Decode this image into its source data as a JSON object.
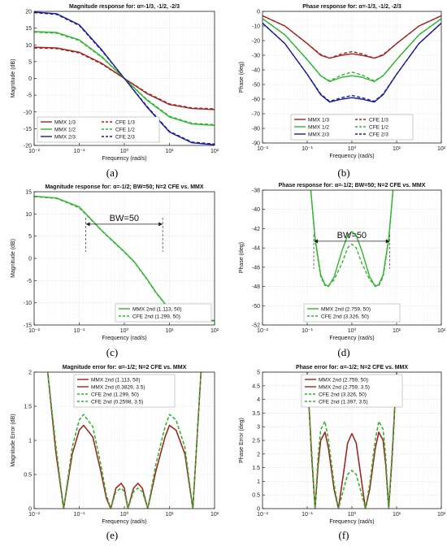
{
  "chart_data": [
    {
      "panel_id": "a",
      "caption": "(a)",
      "type": "line",
      "title": "Magnitude response for: α=-1/3, -1/2, -2/3",
      "xlabel": "Frequency (rad/s)",
      "ylabel": "Magnitude (dB)",
      "xscale": "log",
      "xlim": [
        0.01,
        100
      ],
      "ylim": [
        -20,
        20
      ],
      "xticks": [
        0.01,
        0.1,
        1,
        10,
        100
      ],
      "xtick_labels": [
        "10⁻²",
        "10⁻¹",
        "10⁰",
        "10¹",
        "10²"
      ],
      "yticks": [
        -20,
        -15,
        -10,
        -5,
        0,
        5,
        10,
        15,
        20
      ],
      "ytick_labels": [
        "-20",
        "-15",
        "-10",
        "-5",
        "0",
        "5",
        "10",
        "15",
        "20"
      ],
      "grid": true,
      "legend_position": "bottom-left",
      "legend_columns": 2,
      "x": [
        0.01,
        0.0316,
        0.1,
        0.316,
        1,
        3.16,
        10,
        31.6,
        100
      ],
      "series": [
        {
          "name": "MMX 1/3",
          "color": "#a3231f",
          "dash": "solid",
          "values": [
            9.3,
            9.1,
            7.8,
            4.5,
            0,
            -4.5,
            -7.8,
            -9.0,
            -9.3
          ]
        },
        {
          "name": "CFE 1/3",
          "color": "#a3231f",
          "dash": "dashed",
          "values": [
            9.1,
            8.9,
            7.6,
            4.3,
            0,
            -4.3,
            -7.6,
            -8.8,
            -9.1
          ]
        },
        {
          "name": "MMX 1/2",
          "color": "#2fb62f",
          "dash": "solid",
          "values": [
            14.0,
            13.7,
            11.5,
            6.5,
            0,
            -6.5,
            -11.5,
            -13.6,
            -14.0
          ]
        },
        {
          "name": "CFE 1/2",
          "color": "#2fb62f",
          "dash": "dashed",
          "values": [
            13.8,
            13.5,
            11.3,
            6.3,
            0,
            -6.3,
            -11.3,
            -13.4,
            -13.8
          ]
        },
        {
          "name": "MMX 2/3",
          "color": "#1a1a9e",
          "dash": "solid",
          "values": [
            19.8,
            19.3,
            16.0,
            8.5,
            0,
            -8.5,
            -16.0,
            -19.2,
            -19.8
          ]
        },
        {
          "name": "CFE 2/3",
          "color": "#1a1a9e",
          "dash": "dashed",
          "values": [
            19.6,
            19.1,
            15.8,
            8.3,
            0,
            -8.3,
            -15.8,
            -19.0,
            -19.6
          ]
        }
      ],
      "annotations": []
    },
    {
      "panel_id": "b",
      "caption": "(b)",
      "type": "line",
      "title": "Phase response for: α=-1/3, -1/2, -2/3",
      "xlabel": "Frequency (rad/s)",
      "ylabel": "Phase (deg)",
      "xscale": "log",
      "xlim": [
        0.01,
        100
      ],
      "ylim": [
        -90,
        0
      ],
      "xticks": [
        0.01,
        0.1,
        1,
        10,
        100
      ],
      "xtick_labels": [
        "10⁻²",
        "10⁻¹",
        "10⁰",
        "10¹",
        "10²"
      ],
      "yticks": [
        -90,
        -80,
        -70,
        -60,
        -50,
        -40,
        -30,
        -20,
        -10,
        0
      ],
      "ytick_labels": [
        "-90",
        "-80",
        "-70",
        "-60",
        "-50",
        "-40",
        "-30",
        "-20",
        "-10",
        "0"
      ],
      "grid": true,
      "legend_position": "bottom-center",
      "legend_columns": 2,
      "x": [
        0.01,
        0.0316,
        0.1,
        0.2,
        0.316,
        0.6,
        1,
        1.67,
        3.16,
        5,
        10,
        31.6,
        100
      ],
      "series": [
        {
          "name": "MMX 1/3",
          "color": "#a3231f",
          "dash": "solid",
          "values": [
            -3,
            -10,
            -22,
            -30,
            -32,
            -30,
            -29,
            -30,
            -32,
            -30,
            -22,
            -10,
            -3
          ]
        },
        {
          "name": "CFE 1/3",
          "color": "#a3231f",
          "dash": "dashed",
          "values": [
            -3,
            -10,
            -22,
            -29.5,
            -32,
            -29,
            -27.5,
            -29,
            -32,
            -29.5,
            -22,
            -10,
            -3
          ]
        },
        {
          "name": "MMX 1/2",
          "color": "#2fb62f",
          "dash": "solid",
          "values": [
            -5,
            -16,
            -33,
            -44,
            -48,
            -45,
            -44,
            -45,
            -48,
            -44,
            -33,
            -16,
            -5
          ]
        },
        {
          "name": "CFE 1/2",
          "color": "#2fb62f",
          "dash": "dashed",
          "values": [
            -5,
            -16,
            -33,
            -44,
            -47.5,
            -43.5,
            -41.5,
            -43.5,
            -47.5,
            -44,
            -33,
            -16,
            -5
          ]
        },
        {
          "name": "MMX 2/3",
          "color": "#1a1a9e",
          "dash": "solid",
          "values": [
            -8,
            -22,
            -43,
            -57,
            -62,
            -60,
            -59,
            -60,
            -62,
            -57,
            -43,
            -22,
            -8
          ]
        },
        {
          "name": "CFE 2/3",
          "color": "#1a1a9e",
          "dash": "dashed",
          "values": [
            -8,
            -22,
            -43,
            -56.5,
            -61.5,
            -59,
            -57.5,
            -59,
            -61.5,
            -56.5,
            -43,
            -22,
            -8
          ]
        }
      ],
      "annotations": []
    },
    {
      "panel_id": "c",
      "caption": "(c)",
      "type": "line",
      "title": "Magnitude response for: α=-1/2; BW=50; N=2 CFE vs. MMX",
      "xlabel": "Frequency (rad/s)",
      "ylabel": "Magnitude (dB)",
      "xscale": "log",
      "xlim": [
        0.01,
        100
      ],
      "ylim": [
        -15,
        15
      ],
      "xticks": [
        0.01,
        0.1,
        1,
        10,
        100
      ],
      "xtick_labels": [
        "10⁻²",
        "10⁻¹",
        "10⁰",
        "10¹",
        "10²"
      ],
      "yticks": [
        -15,
        -10,
        -5,
        0,
        5,
        10,
        15
      ],
      "ytick_labels": [
        "-15",
        "-10",
        "-5",
        "0",
        "5",
        "10",
        "15"
      ],
      "grid": true,
      "legend_position": "bottom-right",
      "legend_columns": 1,
      "x": [
        0.01,
        0.0316,
        0.1,
        0.2,
        0.316,
        0.6,
        1,
        1.67,
        3.16,
        5,
        10,
        31.6,
        100
      ],
      "series": [
        {
          "name": "MMX 2nd (1.113, 50)",
          "color": "#2fb62f",
          "dash": "solid",
          "values": [
            14.0,
            13.6,
            11.6,
            8.4,
            6.3,
            3.6,
            1.5,
            -0.8,
            -4.6,
            -7.6,
            -11.5,
            -13.6,
            -14.0
          ]
        },
        {
          "name": "CFE 2nd (1.299, 50)",
          "color": "#2fb62f",
          "dash": "dashed",
          "values": [
            13.9,
            13.5,
            11.4,
            8.3,
            6.2,
            3.5,
            1.4,
            -0.9,
            -4.7,
            -7.7,
            -11.6,
            -13.7,
            -14.1
          ]
        }
      ],
      "annotations": [
        {
          "text": "BW=50",
          "x_from": 0.14,
          "x_to": 7.07,
          "y": 7.7
        }
      ]
    },
    {
      "panel_id": "d",
      "caption": "(d)",
      "type": "line",
      "title": "Phase response for: α=-1/2; BW=50; N=2 CFE vs. MMX",
      "xlabel": "Frequency (rad/s)",
      "ylabel": "Phase (deg)",
      "xscale": "log",
      "xlim": [
        0.01,
        100
      ],
      "ylim": [
        -52,
        -38
      ],
      "xticks": [
        0.01,
        0.1,
        1,
        10,
        100
      ],
      "xtick_labels": [
        "10⁻²",
        "10⁻¹",
        "10⁰",
        "10¹",
        "10²"
      ],
      "yticks": [
        -52,
        -50,
        -48,
        -46,
        -44,
        -42,
        -40,
        -38
      ],
      "ytick_labels": [
        "-52",
        "-50",
        "-48",
        "-46",
        "-44",
        "-42",
        "-40",
        "-38"
      ],
      "grid": true,
      "legend_position": "bottom-center",
      "legend_columns": 1,
      "x": [
        0.12,
        0.15,
        0.2,
        0.25,
        0.3,
        0.4,
        0.6,
        0.8,
        1,
        1.25,
        1.67,
        2.5,
        3.33,
        4,
        5,
        6.67,
        8.33
      ],
      "series": [
        {
          "name": "MMX 2nd (2.759, 50)",
          "color": "#2fb62f",
          "dash": "solid",
          "values": [
            -38,
            -43,
            -46.8,
            -47.8,
            -48.0,
            -47.0,
            -44.3,
            -42.7,
            -42.3,
            -42.7,
            -44.3,
            -47.0,
            -48.0,
            -47.8,
            -46.8,
            -43,
            -38
          ]
        },
        {
          "name": "CFE 2nd (3.326, 50)",
          "color": "#2fb62f",
          "dash": "dashed",
          "values": [
            -38,
            -43.2,
            -47.0,
            -47.9,
            -47.9,
            -47.3,
            -45.6,
            -44.0,
            -43.6,
            -44.0,
            -45.6,
            -47.3,
            -47.9,
            -47.9,
            -47.0,
            -43.2,
            -38
          ]
        }
      ],
      "annotations": [
        {
          "text": "BW=50",
          "x_from": 0.14,
          "x_to": 7.07,
          "y": -43.3
        }
      ]
    },
    {
      "panel_id": "e",
      "caption": "(e)",
      "type": "line",
      "title": "Magnitude error for: α=-1/2; N=2 CFE vs. MMX",
      "xlabel": "Frequency (rad/s)",
      "ylabel": "Magnitude Error (dB)",
      "xscale": "log",
      "xlim": [
        0.01,
        100
      ],
      "ylim": [
        0,
        2
      ],
      "xticks": [
        0.01,
        0.1,
        1,
        10,
        100
      ],
      "xtick_labels": [
        "10⁻²",
        "10⁻¹",
        "10⁰",
        "10¹",
        "10²"
      ],
      "yticks": [
        0,
        0.5,
        1,
        1.5,
        2
      ],
      "ytick_labels": [
        "0",
        "0.5",
        "1",
        "1.5",
        "2"
      ],
      "grid": true,
      "legend_position": "top-center",
      "legend_columns": 1,
      "x": [
        0.02,
        0.03,
        0.045,
        0.07,
        0.1,
        0.125,
        0.2,
        0.3,
        0.4,
        0.5,
        0.65,
        0.85,
        1.0,
        1.2,
        1.6,
        2.0,
        2.5,
        3.3,
        5,
        8,
        10,
        14,
        22,
        33,
        50
      ],
      "series": [
        {
          "name": "MMX 2nd (1.113, 50)",
          "color": "#a3231f",
          "dash": "solid",
          "values": [
            2.0,
            0.85,
            0,
            0.8,
            1.15,
            1.22,
            1.05,
            0.55,
            0.15,
            0,
            0.3,
            0.37,
            0.3,
            0,
            0.3,
            0.37,
            0.3,
            0,
            0.55,
            1.05,
            1.22,
            1.15,
            0.8,
            0,
            2.0
          ]
        },
        {
          "name": "MMX 2nd (0.3829, 3.5)",
          "color": "#a3231f",
          "dash": "solid",
          "values": [
            2.0,
            0.85,
            0,
            0.8,
            1.15,
            1.22,
            1.05,
            0.55,
            0.15,
            0,
            0.3,
            0.37,
            0.3,
            0,
            0.3,
            0.37,
            0.3,
            0,
            0.55,
            1.05,
            1.22,
            1.15,
            0.8,
            0,
            2.0
          ]
        },
        {
          "name": "CFE 2nd (1.299, 50)",
          "color": "#2fb62f",
          "dash": "dashed",
          "values": [
            2.0,
            0.95,
            0,
            0.9,
            1.3,
            1.38,
            1.2,
            0.65,
            0.2,
            0,
            0.25,
            0.3,
            0.25,
            0,
            0.25,
            0.3,
            0.25,
            0,
            0.65,
            1.2,
            1.38,
            1.3,
            0.9,
            0,
            2.0
          ]
        },
        {
          "name": "CFE 2nd (0.2598, 3.5)",
          "color": "#2fb62f",
          "dash": "dashed",
          "values": [
            2.0,
            0.95,
            0,
            0.9,
            1.3,
            1.38,
            1.2,
            0.65,
            0.2,
            0,
            0.25,
            0.3,
            0.25,
            0,
            0.25,
            0.3,
            0.25,
            0,
            0.65,
            1.2,
            1.38,
            1.3,
            0.9,
            0,
            2.0
          ]
        }
      ],
      "annotations": []
    },
    {
      "panel_id": "f",
      "caption": "(f)",
      "type": "line",
      "title": "Phase error for: α=-1/2; N=2 CFE vs. MMX",
      "xlabel": "Frequency (rad/s)",
      "ylabel": "Phase Error (deg)",
      "xscale": "log",
      "xlim": [
        0.01,
        100
      ],
      "ylim": [
        0,
        5
      ],
      "xticks": [
        0.01,
        0.1,
        1,
        10,
        100
      ],
      "xtick_labels": [
        "10⁻²",
        "10⁻¹",
        "10⁰",
        "10¹",
        "10²"
      ],
      "yticks": [
        0,
        0.5,
        1,
        1.5,
        2,
        2.5,
        3,
        3.5,
        4,
        4.5,
        5
      ],
      "ytick_labels": [
        "0",
        "0.5",
        "1",
        "1.5",
        "2",
        "2.5",
        "3",
        "3.5",
        "4",
        "4.5",
        "5"
      ],
      "grid": true,
      "legend_position": "top-center",
      "legend_columns": 1,
      "x": [
        0.1,
        0.125,
        0.15,
        0.175,
        0.2,
        0.25,
        0.3,
        0.4,
        0.5,
        0.65,
        0.8,
        1.0,
        1.25,
        1.55,
        2.0,
        2.5,
        3.33,
        4,
        5,
        5.7,
        6.67,
        8,
        10
      ],
      "series": [
        {
          "name": "MMX 2nd (2.759, 50)",
          "color": "#a3231f",
          "dash": "solid",
          "values": [
            5.0,
            2.0,
            0,
            1.6,
            2.5,
            2.8,
            2.2,
            0.7,
            0,
            1.3,
            2.4,
            2.75,
            2.4,
            1.3,
            0,
            0.7,
            2.2,
            2.8,
            2.5,
            1.6,
            0,
            2.0,
            5.0
          ]
        },
        {
          "name": "MMX 2nd (2.759, 3.5)",
          "color": "#a3231f",
          "dash": "solid",
          "values": [
            5.0,
            2.0,
            0,
            1.6,
            2.5,
            2.8,
            2.2,
            0.7,
            0,
            1.3,
            2.4,
            2.75,
            2.4,
            1.3,
            0,
            0.7,
            2.2,
            2.8,
            2.5,
            1.6,
            0,
            2.0,
            5.0
          ]
        },
        {
          "name": "CFE 2nd (3.326, 50)",
          "color": "#2fb62f",
          "dash": "dashed",
          "values": [
            5.0,
            2.2,
            0,
            1.9,
            2.9,
            3.2,
            2.5,
            0.9,
            0,
            0.7,
            1.25,
            1.4,
            1.25,
            0.7,
            0,
            0.9,
            2.5,
            3.2,
            2.9,
            1.9,
            0,
            2.2,
            5.0
          ]
        },
        {
          "name": "CFE 2nd (1.397, 3.5)",
          "color": "#2fb62f",
          "dash": "dashed",
          "values": [
            5.0,
            2.2,
            0,
            1.9,
            2.9,
            3.2,
            2.5,
            0.9,
            0,
            0.7,
            1.25,
            1.4,
            1.25,
            0.7,
            0,
            0.9,
            2.5,
            3.2,
            2.9,
            1.9,
            0,
            2.2,
            5.0
          ]
        }
      ],
      "annotations": []
    }
  ]
}
